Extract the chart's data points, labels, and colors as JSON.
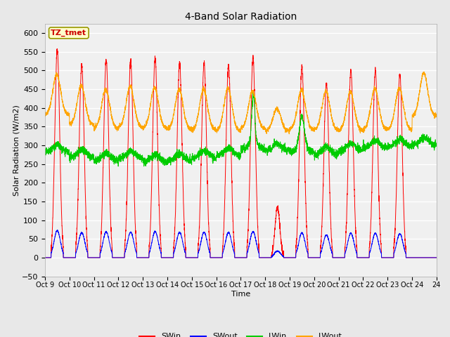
{
  "title": "4-Band Solar Radiation",
  "xlabel": "Time",
  "ylabel": "Solar Radiation (W/m2)",
  "ylim": [
    -50,
    625
  ],
  "yticks": [
    -50,
    0,
    50,
    100,
    150,
    200,
    250,
    300,
    350,
    400,
    450,
    500,
    550,
    600
  ],
  "annotation_text": "TZ_tmet",
  "annotation_bbox_color": "#ffffcc",
  "annotation_text_color": "#cc0000",
  "annotation_bbox_edge": "#999900",
  "bg_color": "#e8e8e8",
  "plot_bg_color": "#f0f0f0",
  "colors": {
    "SWin": "#ff0000",
    "SWout": "#0000ff",
    "LWin": "#00cc00",
    "LWout": "#ffa500"
  },
  "xtick_labels": [
    "Oct 9",
    "Oct 10",
    "Oct 11",
    "Oct 12",
    "Oct 13",
    "Oct 14",
    "Oct 15",
    "Oct 16",
    "Oct 17",
    "Oct 18",
    "Oct 19",
    "Oct 20",
    "Oct 21",
    "Oct 22",
    "Oct 23",
    "Oct 24"
  ],
  "xtick_labels_display": [
    "Oct 9",
    "Oct 10",
    "Oct 11",
    "Oct 12",
    "Oct 13",
    "Oct 14",
    "Oct 15",
    "Oct 16",
    "Oct 17",
    "Oct 18",
    "Oct 19",
    "Oct 20",
    "Oct 21",
    "Oct 22",
    "Oct 23",
    "Oct 24"
  ],
  "SWin_peaks": [
    555,
    515,
    530,
    525,
    535,
    520,
    520,
    515,
    535,
    135,
    510,
    465,
    500,
    500,
    490,
    0
  ],
  "SWout_ratio": 0.13,
  "LWout_base": [
    380,
    355,
    345,
    348,
    345,
    342,
    340,
    338,
    345,
    338,
    342,
    340,
    338,
    342,
    342,
    378
  ],
  "LWout_day_rise": [
    110,
    105,
    105,
    110,
    110,
    108,
    110,
    115,
    100,
    60,
    105,
    105,
    105,
    110,
    110,
    115
  ],
  "LWin_base": [
    280,
    268,
    258,
    265,
    255,
    258,
    265,
    272,
    290,
    285,
    282,
    275,
    285,
    292,
    296,
    300
  ],
  "days": 16
}
